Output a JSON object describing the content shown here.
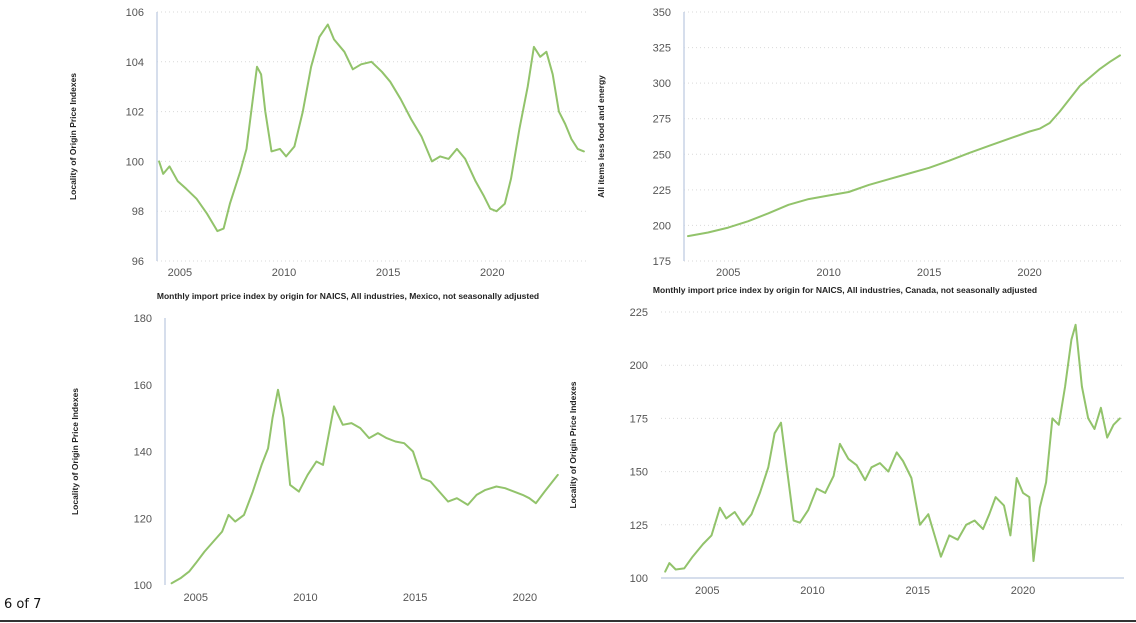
{
  "page": {
    "page_indicator": "6 of 7"
  },
  "chart_data": [
    {
      "type": "line",
      "title": "",
      "xlabel": "",
      "ylabel": "Locality of Origin Price Indexes",
      "xlim": [
        2003.9,
        2024.5
      ],
      "ylim": [
        96,
        106
      ],
      "x_ticks": [
        "2005",
        "2010",
        "2015",
        "2020"
      ],
      "y_ticks": [
        "96",
        "98",
        "100",
        "102",
        "104",
        "106"
      ],
      "grid": "horizontal dotted",
      "series": [
        {
          "color": "#92c36b",
          "x": [
            2004.0,
            2004.2,
            2004.5,
            2004.9,
            2005.3,
            2005.8,
            2006.3,
            2006.8,
            2007.1,
            2007.4,
            2007.9,
            2008.2,
            2008.5,
            2008.7,
            2008.9,
            2009.1,
            2009.4,
            2009.8,
            2010.1,
            2010.5,
            2010.9,
            2011.3,
            2011.7,
            2012.1,
            2012.4,
            2012.9,
            2013.3,
            2013.7,
            2014.2,
            2014.7,
            2015.1,
            2015.6,
            2016.1,
            2016.6,
            2017.1,
            2017.5,
            2017.9,
            2018.3,
            2018.7,
            2019.2,
            2019.6,
            2019.9,
            2020.2,
            2020.6,
            2020.9,
            2021.3,
            2021.7,
            2022.0,
            2022.3,
            2022.6,
            2022.9,
            2023.2,
            2023.5,
            2023.8,
            2024.1,
            2024.4
          ],
          "y": [
            100.0,
            99.5,
            99.8,
            99.2,
            98.9,
            98.5,
            97.9,
            97.2,
            97.3,
            98.3,
            99.6,
            100.5,
            102.5,
            103.8,
            103.5,
            102.0,
            100.4,
            100.5,
            100.2,
            100.6,
            102.0,
            103.8,
            105.0,
            105.5,
            104.9,
            104.4,
            103.7,
            103.9,
            104.0,
            103.6,
            103.2,
            102.5,
            101.7,
            101.0,
            100.0,
            100.2,
            100.1,
            100.5,
            100.1,
            99.2,
            98.6,
            98.1,
            98.0,
            98.3,
            99.3,
            101.3,
            103.0,
            104.6,
            104.2,
            104.4,
            103.5,
            102.0,
            101.5,
            100.9,
            100.5,
            100.4
          ]
        }
      ]
    },
    {
      "type": "line",
      "title": "",
      "xlabel": "",
      "ylabel": "All items less food and energy",
      "xlim": [
        2002.8,
        2024.7
      ],
      "ylim": [
        175,
        350
      ],
      "x_ticks": [
        "2005",
        "2010",
        "2015",
        "2020"
      ],
      "y_ticks": [
        "175",
        "200",
        "225",
        "250",
        "275",
        "300",
        "325",
        "350"
      ],
      "grid": "horizontal dotted",
      "series": [
        {
          "color": "#92c36b",
          "x": [
            2003.0,
            2004.0,
            2005.0,
            2006.0,
            2007.0,
            2008.0,
            2009.0,
            2010.0,
            2011.0,
            2012.0,
            2013.0,
            2014.0,
            2015.0,
            2016.0,
            2017.0,
            2018.0,
            2019.0,
            2020.0,
            2020.5,
            2021.0,
            2021.5,
            2022.0,
            2022.5,
            2023.0,
            2023.5,
            2024.0,
            2024.5
          ],
          "y": [
            192.5,
            195.0,
            198.5,
            203.0,
            208.5,
            214.5,
            218.5,
            221.0,
            223.5,
            228.5,
            232.5,
            236.5,
            240.5,
            245.5,
            251.0,
            256.0,
            261.0,
            266.0,
            268.0,
            272.0,
            280.0,
            289.0,
            298.0,
            304.0,
            310.0,
            315.0,
            319.5
          ]
        }
      ]
    },
    {
      "type": "line",
      "title": "Monthly import price index by origin for NAICS, All industries, Mexico, not seasonally adjusted",
      "xlabel": "",
      "ylabel": "Locality of Origin Price Indexes",
      "xlim": [
        2003.6,
        2021.6
      ],
      "ylim": [
        100,
        180
      ],
      "x_ticks": [
        "2005",
        "2010",
        "2015",
        "2020"
      ],
      "y_ticks": [
        "100",
        "120",
        "140",
        "160",
        "180"
      ],
      "grid": "none",
      "series": [
        {
          "color": "#92c36b",
          "x": [
            2003.9,
            2004.3,
            2004.7,
            2005.0,
            2005.4,
            2005.8,
            2006.2,
            2006.5,
            2006.8,
            2007.2,
            2007.6,
            2008.0,
            2008.3,
            2008.5,
            2008.75,
            2009.0,
            2009.3,
            2009.7,
            2010.1,
            2010.5,
            2010.8,
            2011.0,
            2011.3,
            2011.7,
            2012.1,
            2012.5,
            2012.9,
            2013.3,
            2013.7,
            2014.1,
            2014.5,
            2014.9,
            2015.3,
            2015.7,
            2016.1,
            2016.5,
            2016.9,
            2017.4,
            2017.8,
            2018.2,
            2018.7,
            2019.1,
            2019.5,
            2019.9,
            2020.2,
            2020.5,
            2020.9,
            2021.2,
            2021.5
          ],
          "y": [
            100.5,
            102.0,
            104.0,
            106.5,
            110.0,
            113.0,
            116.0,
            121.0,
            119.0,
            121.0,
            128.0,
            136.0,
            141.0,
            150.0,
            158.5,
            150.0,
            130.0,
            128.0,
            133.0,
            137.0,
            136.0,
            143.0,
            153.5,
            148.0,
            148.5,
            147.0,
            144.0,
            145.5,
            144.0,
            143.0,
            142.5,
            140.0,
            132.0,
            131.0,
            128.0,
            125.0,
            126.0,
            124.0,
            127.0,
            128.5,
            129.5,
            129.0,
            128.0,
            127.0,
            126.0,
            124.5,
            128.0,
            130.5,
            133.0
          ]
        }
      ]
    },
    {
      "type": "line",
      "title": "Monthly import price index by origin for NAICS, All industries, Canada, not seasonally adjusted",
      "xlabel": "",
      "ylabel": "Locality of Origin Price Indexes",
      "xlim": [
        2002.8,
        2024.8
      ],
      "ylim": [
        100,
        225
      ],
      "x_ticks": [
        "2005",
        "2010",
        "2015",
        "2020"
      ],
      "y_ticks": [
        "100",
        "125",
        "150",
        "175",
        "200",
        "225"
      ],
      "grid": "horizontal dotted",
      "series": [
        {
          "color": "#92c36b",
          "x": [
            2003.0,
            2003.2,
            2003.5,
            2003.9,
            2004.3,
            2004.8,
            2005.2,
            2005.6,
            2005.9,
            2006.3,
            2006.7,
            2007.1,
            2007.5,
            2007.9,
            2008.2,
            2008.5,
            2008.8,
            2009.1,
            2009.4,
            2009.8,
            2010.2,
            2010.6,
            2011.0,
            2011.3,
            2011.7,
            2012.1,
            2012.5,
            2012.8,
            2013.2,
            2013.6,
            2014.0,
            2014.3,
            2014.7,
            2015.1,
            2015.5,
            2015.8,
            2016.1,
            2016.5,
            2016.9,
            2017.3,
            2017.7,
            2018.1,
            2018.4,
            2018.7,
            2019.1,
            2019.4,
            2019.7,
            2020.0,
            2020.3,
            2020.5,
            2020.8,
            2021.1,
            2021.4,
            2021.7,
            2022.0,
            2022.3,
            2022.5,
            2022.8,
            2023.1,
            2023.4,
            2023.7,
            2024.0,
            2024.3,
            2024.6
          ],
          "y": [
            103.0,
            107.0,
            104.0,
            104.5,
            110.0,
            116.0,
            120.0,
            133.0,
            128.0,
            131.0,
            125.0,
            130.0,
            140.0,
            152.0,
            168.0,
            173.0,
            150.0,
            127.0,
            126.0,
            132.0,
            142.0,
            140.0,
            148.0,
            163.0,
            156.0,
            153.0,
            146.0,
            152.0,
            154.0,
            150.0,
            159.0,
            155.0,
            147.0,
            125.0,
            130.0,
            120.0,
            110.0,
            120.0,
            118.0,
            125.0,
            127.0,
            123.0,
            130.0,
            138.0,
            134.0,
            120.0,
            147.0,
            140.0,
            138.0,
            108.0,
            133.0,
            145.0,
            175.0,
            172.0,
            190.0,
            212.0,
            219.0,
            190.0,
            175.0,
            170.0,
            180.0,
            166.0,
            172.0,
            175.0
          ]
        }
      ]
    }
  ]
}
